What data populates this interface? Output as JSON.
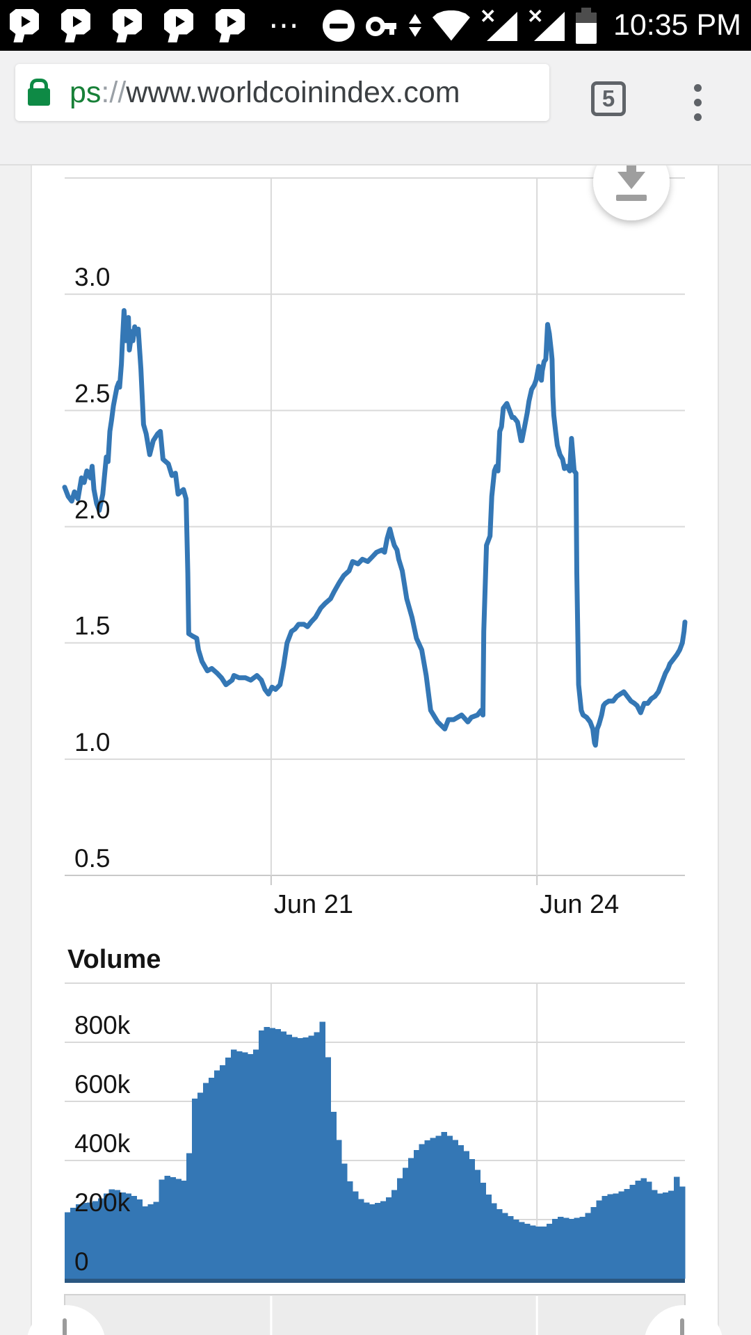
{
  "status_bar": {
    "time": "10:35 PM",
    "left_icons": [
      "p-badge-icon",
      "p-badge-icon",
      "p-badge-icon",
      "p-badge-icon",
      "p-badge-icon",
      "overflow-dots-icon",
      "do-not-disturb-icon"
    ],
    "right_icons": [
      "key-icon",
      "traffic-arrows-icon",
      "wifi-icon",
      "no-sim-signal-icon",
      "no-sim-signal-icon",
      "battery-icon"
    ]
  },
  "browser": {
    "lock_icon": "lock-icon",
    "url_scheme_tail": "ps",
    "url_separator": "://",
    "url_host": "www.worldcoinindex.com",
    "tab_count": "5",
    "menu_icon": "kebab-menu-icon",
    "accent_green": "#188038"
  },
  "page": {
    "download_button_icon": "download-icon",
    "card_color": "#ffffff",
    "body_color": "#f1f1f1"
  },
  "chart_data": [
    {
      "type": "line",
      "series_name": "price",
      "title": "",
      "xlabel": "",
      "ylabel": "",
      "x_range": [
        -2.33,
        4.67
      ],
      "x_ticks": [
        {
          "t": 0,
          "label": "Jun 21"
        },
        {
          "t": 3,
          "label": "Jun 24"
        }
      ],
      "y_range": [
        0.5,
        3.5
      ],
      "y_ticks": [
        {
          "v": 3.0,
          "label": "3.0"
        },
        {
          "v": 2.5,
          "label": "2.5"
        },
        {
          "v": 2.0,
          "label": "2.0"
        },
        {
          "v": 1.5,
          "label": "1.5"
        },
        {
          "v": 1.0,
          "label": "1.0"
        },
        {
          "v": 0.5,
          "label": "0.5"
        }
      ],
      "grid": true,
      "line_color": "#3477b5",
      "points": [
        [
          -2.33,
          2.17
        ],
        [
          -2.29,
          2.13
        ],
        [
          -2.25,
          2.11
        ],
        [
          -2.22,
          2.15
        ],
        [
          -2.18,
          2.12
        ],
        [
          -2.14,
          2.21
        ],
        [
          -2.11,
          2.19
        ],
        [
          -2.08,
          2.24
        ],
        [
          -2.04,
          2.21
        ],
        [
          -2.02,
          2.26
        ],
        [
          -2.0,
          2.16
        ],
        [
          -1.97,
          2.1
        ],
        [
          -1.94,
          2.07
        ],
        [
          -1.9,
          2.14
        ],
        [
          -1.88,
          2.22
        ],
        [
          -1.86,
          2.3
        ],
        [
          -1.84,
          2.28
        ],
        [
          -1.82,
          2.41
        ],
        [
          -1.8,
          2.46
        ],
        [
          -1.78,
          2.52
        ],
        [
          -1.76,
          2.56
        ],
        [
          -1.74,
          2.6
        ],
        [
          -1.72,
          2.62
        ],
        [
          -1.71,
          2.6
        ],
        [
          -1.69,
          2.7
        ],
        [
          -1.68,
          2.78
        ],
        [
          -1.66,
          2.93
        ],
        [
          -1.64,
          2.8
        ],
        [
          -1.63,
          2.87
        ],
        [
          -1.61,
          2.9
        ],
        [
          -1.6,
          2.76
        ],
        [
          -1.57,
          2.84
        ],
        [
          -1.56,
          2.8
        ],
        [
          -1.54,
          2.86
        ],
        [
          -1.52,
          2.83
        ],
        [
          -1.5,
          2.85
        ],
        [
          -1.47,
          2.68
        ],
        [
          -1.44,
          2.44
        ],
        [
          -1.41,
          2.4
        ],
        [
          -1.37,
          2.31
        ],
        [
          -1.33,
          2.37
        ],
        [
          -1.28,
          2.4
        ],
        [
          -1.25,
          2.41
        ],
        [
          -1.22,
          2.29
        ],
        [
          -1.16,
          2.27
        ],
        [
          -1.12,
          2.22
        ],
        [
          -1.08,
          2.23
        ],
        [
          -1.05,
          2.14
        ],
        [
          -0.99,
          2.16
        ],
        [
          -0.96,
          2.12
        ],
        [
          -0.94,
          1.8
        ],
        [
          -0.93,
          1.54
        ],
        [
          -0.89,
          1.53
        ],
        [
          -0.84,
          1.52
        ],
        [
          -0.82,
          1.47
        ],
        [
          -0.78,
          1.42
        ],
        [
          -0.72,
          1.38
        ],
        [
          -0.67,
          1.39
        ],
        [
          -0.61,
          1.37
        ],
        [
          -0.56,
          1.35
        ],
        [
          -0.51,
          1.32
        ],
        [
          -0.44,
          1.34
        ],
        [
          -0.42,
          1.36
        ],
        [
          -0.36,
          1.35
        ],
        [
          -0.29,
          1.35
        ],
        [
          -0.23,
          1.34
        ],
        [
          -0.16,
          1.36
        ],
        [
          -0.11,
          1.34
        ],
        [
          -0.07,
          1.3
        ],
        [
          -0.03,
          1.28
        ],
        [
          0.01,
          1.31
        ],
        [
          0.05,
          1.3
        ],
        [
          0.1,
          1.32
        ],
        [
          0.14,
          1.4
        ],
        [
          0.18,
          1.5
        ],
        [
          0.23,
          1.55
        ],
        [
          0.27,
          1.56
        ],
        [
          0.31,
          1.58
        ],
        [
          0.37,
          1.58
        ],
        [
          0.41,
          1.57
        ],
        [
          0.45,
          1.59
        ],
        [
          0.5,
          1.61
        ],
        [
          0.56,
          1.65
        ],
        [
          0.61,
          1.67
        ],
        [
          0.67,
          1.69
        ],
        [
          0.71,
          1.72
        ],
        [
          0.77,
          1.76
        ],
        [
          0.82,
          1.79
        ],
        [
          0.88,
          1.81
        ],
        [
          0.92,
          1.85
        ],
        [
          0.98,
          1.84
        ],
        [
          1.03,
          1.86
        ],
        [
          1.09,
          1.85
        ],
        [
          1.14,
          1.87
        ],
        [
          1.19,
          1.89
        ],
        [
          1.25,
          1.9
        ],
        [
          1.28,
          1.89
        ],
        [
          1.31,
          1.95
        ],
        [
          1.34,
          1.99
        ],
        [
          1.36,
          1.96
        ],
        [
          1.39,
          1.92
        ],
        [
          1.42,
          1.9
        ],
        [
          1.44,
          1.86
        ],
        [
          1.48,
          1.81
        ],
        [
          1.53,
          1.69
        ],
        [
          1.59,
          1.61
        ],
        [
          1.64,
          1.52
        ],
        [
          1.7,
          1.47
        ],
        [
          1.75,
          1.36
        ],
        [
          1.8,
          1.21
        ],
        [
          1.88,
          1.16
        ],
        [
          1.96,
          1.13
        ],
        [
          2.0,
          1.17
        ],
        [
          2.06,
          1.17
        ],
        [
          2.15,
          1.19
        ],
        [
          2.22,
          1.16
        ],
        [
          2.26,
          1.18
        ],
        [
          2.33,
          1.19
        ],
        [
          2.37,
          1.21
        ],
        [
          2.39,
          1.19
        ],
        [
          2.4,
          1.55
        ],
        [
          2.43,
          1.92
        ],
        [
          2.47,
          1.96
        ],
        [
          2.49,
          2.13
        ],
        [
          2.52,
          2.24
        ],
        [
          2.54,
          2.26
        ],
        [
          2.56,
          2.24
        ],
        [
          2.58,
          2.41
        ],
        [
          2.6,
          2.43
        ],
        [
          2.62,
          2.51
        ],
        [
          2.66,
          2.53
        ],
        [
          2.69,
          2.5
        ],
        [
          2.72,
          2.47
        ],
        [
          2.74,
          2.47
        ],
        [
          2.78,
          2.45
        ],
        [
          2.82,
          2.37
        ],
        [
          2.83,
          2.37
        ],
        [
          2.86,
          2.43
        ],
        [
          2.89,
          2.49
        ],
        [
          2.91,
          2.54
        ],
        [
          2.94,
          2.59
        ],
        [
          2.97,
          2.61
        ],
        [
          2.99,
          2.63
        ],
        [
          3.01,
          2.67
        ],
        [
          3.02,
          2.69
        ],
        [
          3.03,
          2.65
        ],
        [
          3.05,
          2.63
        ],
        [
          3.06,
          2.67
        ],
        [
          3.08,
          2.71
        ],
        [
          3.1,
          2.72
        ],
        [
          3.12,
          2.87
        ],
        [
          3.14,
          2.83
        ],
        [
          3.16,
          2.76
        ],
        [
          3.17,
          2.72
        ],
        [
          3.18,
          2.56
        ],
        [
          3.19,
          2.48
        ],
        [
          3.21,
          2.41
        ],
        [
          3.23,
          2.35
        ],
        [
          3.26,
          2.31
        ],
        [
          3.29,
          2.29
        ],
        [
          3.31,
          2.25
        ],
        [
          3.34,
          2.26
        ],
        [
          3.37,
          2.24
        ],
        [
          3.39,
          2.38
        ],
        [
          3.42,
          2.24
        ],
        [
          3.44,
          2.23
        ],
        [
          3.45,
          1.8
        ],
        [
          3.47,
          1.32
        ],
        [
          3.5,
          1.21
        ],
        [
          3.52,
          1.19
        ],
        [
          3.56,
          1.18
        ],
        [
          3.6,
          1.16
        ],
        [
          3.63,
          1.13
        ],
        [
          3.65,
          1.07
        ],
        [
          3.66,
          1.06
        ],
        [
          3.68,
          1.13
        ],
        [
          3.7,
          1.15
        ],
        [
          3.73,
          1.19
        ],
        [
          3.75,
          1.23
        ],
        [
          3.77,
          1.24
        ],
        [
          3.81,
          1.25
        ],
        [
          3.86,
          1.25
        ],
        [
          3.9,
          1.27
        ],
        [
          3.94,
          1.28
        ],
        [
          3.98,
          1.29
        ],
        [
          4.02,
          1.27
        ],
        [
          4.06,
          1.25
        ],
        [
          4.1,
          1.24
        ],
        [
          4.13,
          1.23
        ],
        [
          4.17,
          1.2
        ],
        [
          4.21,
          1.24
        ],
        [
          4.25,
          1.24
        ],
        [
          4.29,
          1.26
        ],
        [
          4.33,
          1.27
        ],
        [
          4.37,
          1.29
        ],
        [
          4.41,
          1.33
        ],
        [
          4.45,
          1.37
        ],
        [
          4.48,
          1.39
        ],
        [
          4.5,
          1.41
        ],
        [
          4.54,
          1.43
        ],
        [
          4.58,
          1.45
        ],
        [
          4.61,
          1.47
        ],
        [
          4.64,
          1.5
        ],
        [
          4.66,
          1.55
        ],
        [
          4.67,
          1.59
        ]
      ]
    },
    {
      "type": "bar",
      "title": "Volume",
      "unit": "k",
      "x_range": [
        -2.33,
        4.67
      ],
      "y_range": [
        0,
        1000
      ],
      "y_ticks": [
        {
          "v": 800,
          "label": "800k"
        },
        {
          "v": 600,
          "label": "600k"
        },
        {
          "v": 400,
          "label": "400k"
        },
        {
          "v": 200,
          "label": "200k"
        },
        {
          "v": 0,
          "label": "0"
        }
      ],
      "grid": true,
      "bar_color": "#3477b5",
      "baseline_color": "#2a5781",
      "values_k": [
        225,
        240,
        252,
        256,
        258,
        262,
        272,
        288,
        302,
        300,
        292,
        288,
        280,
        268,
        245,
        252,
        260,
        335,
        348,
        344,
        338,
        332,
        425,
        610,
        630,
        662,
        680,
        705,
        722,
        748,
        775,
        770,
        766,
        760,
        775,
        840,
        852,
        848,
        845,
        836,
        826,
        818,
        814,
        817,
        822,
        834,
        870,
        750,
        565,
        470,
        390,
        330,
        295,
        270,
        258,
        252,
        256,
        262,
        275,
        300,
        340,
        375,
        408,
        435,
        455,
        468,
        477,
        483,
        497,
        483,
        470,
        452,
        432,
        405,
        368,
        325,
        285,
        255,
        235,
        222,
        212,
        200,
        192,
        186,
        180,
        177,
        176,
        186,
        202,
        210,
        206,
        202,
        206,
        210,
        222,
        242,
        265,
        280,
        286,
        288,
        295,
        304,
        318,
        332,
        340,
        328,
        300,
        288,
        292,
        298,
        345,
        312
      ]
    }
  ],
  "navigator": {
    "track_color": "#ececec",
    "gridline_ts": [
      0,
      3
    ],
    "handles": [
      "navigator-left-handle",
      "navigator-right-handle"
    ]
  }
}
